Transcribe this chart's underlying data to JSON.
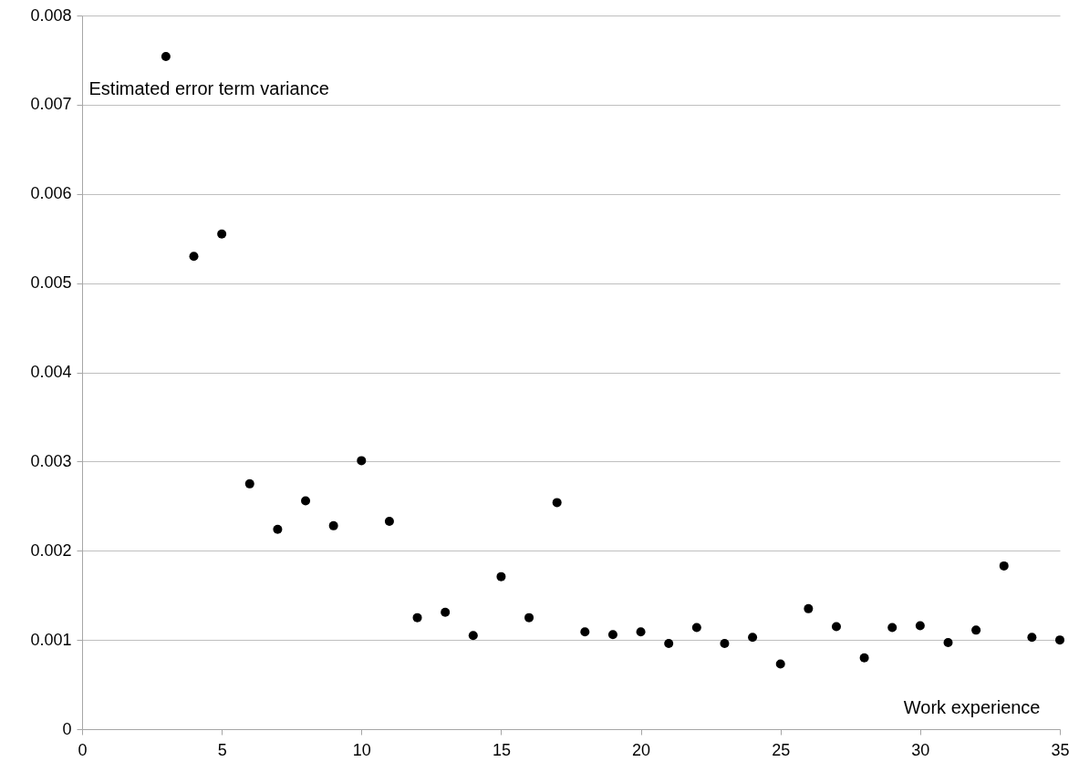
{
  "chart_data": {
    "type": "scatter",
    "xlabel": "Work experience",
    "ylabel": "Estimated error term variance",
    "x": [
      3,
      4,
      5,
      6,
      7,
      8,
      9,
      10,
      11,
      12,
      13,
      14,
      15,
      16,
      17,
      18,
      19,
      20,
      21,
      22,
      23,
      24,
      25,
      26,
      27,
      28,
      29,
      30,
      31,
      32,
      33,
      34,
      35
    ],
    "series": [
      {
        "color": "#000000",
        "values": [
          0.00754,
          0.0053,
          0.00555,
          0.00275,
          0.00224,
          0.00256,
          0.00228,
          0.00301,
          0.00233,
          0.00125,
          0.00131,
          0.00105,
          0.00171,
          0.00125,
          0.00254,
          0.00109,
          0.00106,
          0.00109,
          0.00096,
          0.00114,
          0.00096,
          0.00103,
          0.00073,
          0.00135,
          0.00115,
          0.0008,
          0.00114,
          0.00116,
          0.00097,
          0.00111,
          0.00183,
          0.00103,
          0.001
        ]
      }
    ],
    "xlim": [
      0,
      35
    ],
    "xticks": [
      0,
      5,
      10,
      15,
      20,
      25,
      30,
      35
    ],
    "ylim": [
      0,
      0.008
    ],
    "yticks": [
      0,
      0.001,
      0.002,
      0.003,
      0.004,
      0.005,
      0.006,
      0.007,
      0.008
    ],
    "grid": "y",
    "marker": "circle"
  }
}
